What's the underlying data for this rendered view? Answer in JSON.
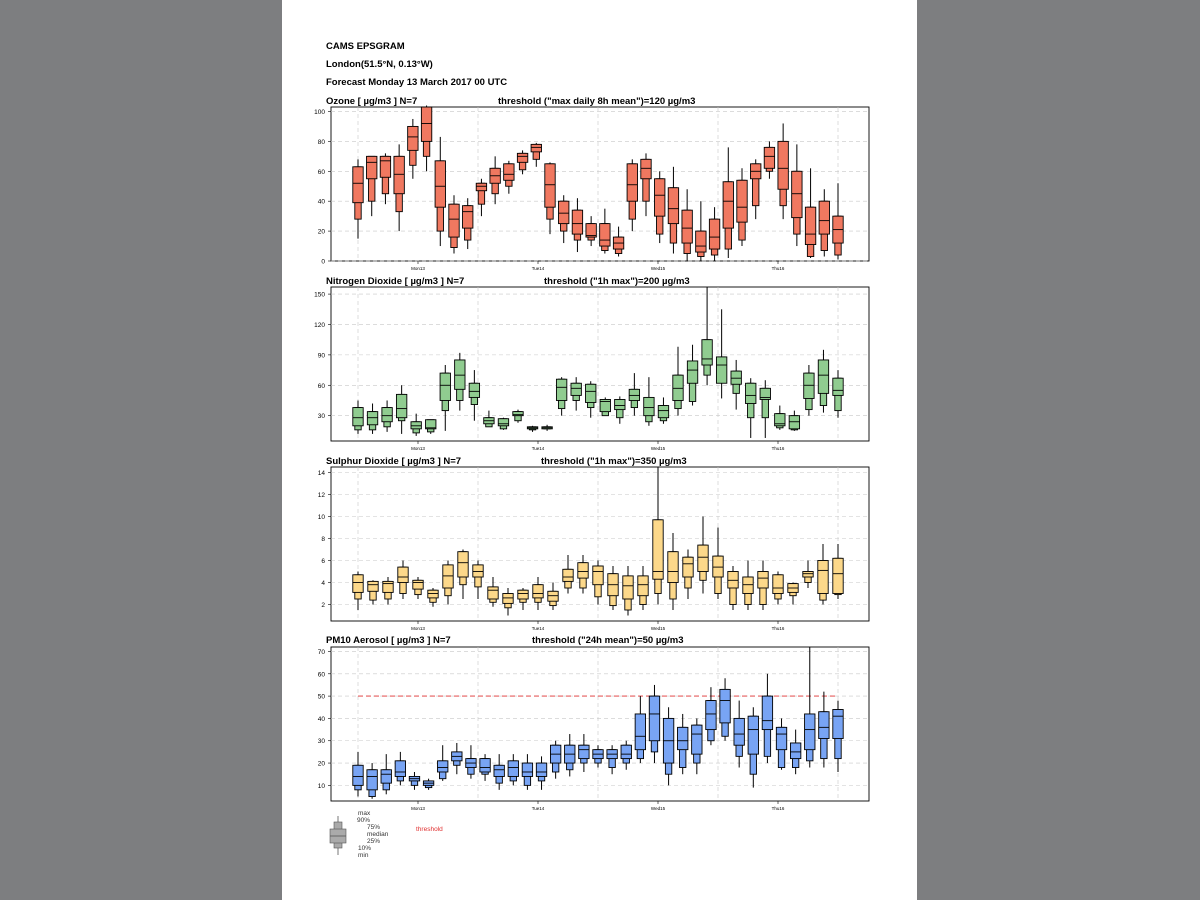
{
  "header": {
    "title": "CAMS EPSGRAM",
    "location": "London(51.5°N, 0.13°W)",
    "forecast": "Forecast Monday 13 March 2017 00 UTC"
  },
  "legend": {
    "max": "max",
    "p90": "90%",
    "p75": "75%",
    "median": "median",
    "p25": "25%",
    "p10": "10%",
    "min": "min",
    "threshold": "threshold"
  },
  "colors": {
    "ozone": "#f07860",
    "no2": "#90cc90",
    "so2": "#fcd88a",
    "pm10": "#78a4f4",
    "threshold_line": "#e03030",
    "page_bg": "#7d7e80"
  },
  "chart_data": [
    {
      "type": "boxplot",
      "title": "Ozone [ µg/m3 ]   N=7",
      "threshold_text": "threshold (\"max daily 8h mean\")=120 µg/m3",
      "ylim": [
        0,
        103
      ],
      "yticks": [
        0,
        20,
        40,
        60,
        80,
        100
      ],
      "x_tick_labels": [
        "Mon13",
        "Tue14",
        "Wed15",
        "Thu16"
      ],
      "threshold": null,
      "series": [
        [
          15,
          28,
          39,
          52,
          63,
          68
        ],
        [
          30,
          40,
          55,
          66,
          70,
          70
        ],
        [
          38,
          45,
          56,
          67,
          70,
          72
        ],
        [
          20,
          33,
          45,
          58,
          70,
          78
        ],
        [
          55,
          64,
          74,
          83,
          90,
          95
        ],
        [
          60,
          70,
          80,
          92,
          103,
          104
        ],
        [
          10,
          20,
          36,
          50,
          67,
          83
        ],
        [
          5,
          9,
          16,
          28,
          38,
          44
        ],
        [
          8,
          14,
          22,
          33,
          37,
          42
        ],
        [
          30,
          38,
          47,
          50,
          52,
          55
        ],
        [
          38,
          45,
          52,
          57,
          62,
          70
        ],
        [
          45,
          50,
          54,
          58,
          65,
          67
        ],
        [
          58,
          61,
          66,
          70,
          72,
          74
        ],
        [
          63,
          68,
          73,
          76,
          78,
          79
        ],
        [
          18,
          28,
          36,
          51,
          65,
          66
        ],
        [
          12,
          20,
          25,
          32,
          40,
          44
        ],
        [
          6,
          14,
          18,
          25,
          34,
          42
        ],
        [
          10,
          14,
          16,
          17,
          25,
          30
        ],
        [
          5,
          7,
          10,
          14,
          25,
          35
        ],
        [
          3,
          5,
          8,
          12,
          16,
          23
        ],
        [
          20,
          28,
          40,
          51,
          65,
          68
        ],
        [
          30,
          40,
          55,
          62,
          68,
          72
        ],
        [
          12,
          18,
          30,
          44,
          55,
          60
        ],
        [
          5,
          12,
          25,
          35,
          49,
          63
        ],
        [
          0,
          5,
          12,
          22,
          34,
          48
        ],
        [
          0,
          3,
          6,
          10,
          20,
          40
        ],
        [
          0,
          4,
          8,
          16,
          28,
          36
        ],
        [
          2,
          8,
          22,
          40,
          53,
          76
        ],
        [
          10,
          14,
          26,
          36,
          54,
          62
        ],
        [
          28,
          37,
          55,
          60,
          65,
          68
        ],
        [
          55,
          60,
          62,
          70,
          76,
          80
        ],
        [
          28,
          37,
          48,
          62,
          80,
          92
        ],
        [
          10,
          18,
          29,
          45,
          60,
          78
        ],
        [
          2,
          3,
          11,
          18,
          36,
          62
        ],
        [
          3,
          7,
          18,
          27,
          40,
          48
        ],
        [
          1,
          4,
          12,
          21,
          30,
          52
        ]
      ]
    },
    {
      "type": "boxplot",
      "title": "Nitrogen Dioxide [ µg/m3 ]   N=7",
      "threshold_text": "threshold (\"1h max\")=200 µg/m3",
      "ylim": [
        5,
        157
      ],
      "yticks": [
        30,
        60,
        90,
        120,
        150
      ],
      "x_tick_labels": [
        "Mon13",
        "Tue14",
        "Wed15",
        "Thu16"
      ],
      "threshold": null,
      "series": [
        [
          12,
          16,
          20,
          28,
          38,
          45
        ],
        [
          12,
          16,
          21,
          28,
          34,
          42
        ],
        [
          14,
          19,
          24,
          30,
          38,
          45
        ],
        [
          12,
          25,
          28,
          37,
          51,
          60
        ],
        [
          10,
          13,
          17,
          20,
          24,
          32
        ],
        [
          12,
          14,
          17,
          18,
          26,
          25
        ],
        [
          15,
          35,
          45,
          60,
          72,
          80
        ],
        [
          35,
          45,
          56,
          70,
          85,
          92
        ],
        [
          25,
          41,
          48,
          54,
          62,
          75
        ],
        [
          20,
          19,
          22,
          25,
          28,
          35
        ],
        [
          16,
          17,
          20,
          22,
          27,
          28
        ],
        [
          23,
          25,
          30,
          31,
          34,
          36
        ],
        [
          14,
          16,
          17,
          18,
          19,
          20
        ],
        [
          15,
          17,
          17,
          18,
          19,
          21
        ],
        [
          30,
          37,
          45,
          58,
          66,
          68
        ],
        [
          35,
          45,
          50,
          57,
          62,
          68
        ],
        [
          28,
          38,
          43,
          54,
          61,
          64
        ],
        [
          30,
          30,
          34,
          44,
          46,
          48
        ],
        [
          22,
          28,
          36,
          40,
          46,
          49
        ],
        [
          30,
          38,
          45,
          50,
          56,
          72
        ],
        [
          20,
          24,
          30,
          38,
          48,
          68
        ],
        [
          22,
          25,
          28,
          35,
          40,
          48
        ],
        [
          30,
          37,
          45,
          57,
          70,
          98
        ],
        [
          40,
          44,
          62,
          75,
          84,
          100
        ],
        [
          60,
          70,
          80,
          86,
          105,
          157
        ],
        [
          47,
          63,
          62,
          80,
          88,
          135
        ],
        [
          36,
          52,
          61,
          67,
          74,
          85
        ],
        [
          8,
          28,
          42,
          50,
          62,
          67
        ],
        [
          8,
          28,
          46,
          48,
          57,
          65
        ],
        [
          16,
          18,
          20,
          22,
          32,
          40
        ],
        [
          15,
          16,
          17,
          24,
          30,
          35
        ],
        [
          30,
          36,
          47,
          60,
          72,
          80
        ],
        [
          33,
          40,
          52,
          70,
          85,
          95
        ],
        [
          28,
          35,
          50,
          55,
          67,
          75
        ]
      ]
    },
    {
      "type": "boxplot",
      "title": "Sulphur Dioxide [ µg/m3 ]   N=7",
      "threshold_text": "threshold (\"1h max\")=350 µg/m3",
      "ylim": [
        0.5,
        14.5
      ],
      "yticks": [
        2,
        4,
        6,
        8,
        10,
        12,
        14
      ],
      "x_tick_labels": [
        "Mon13",
        "Tue14",
        "Wed15",
        "Thu16"
      ],
      "threshold": null,
      "series": [
        [
          1.5,
          2.5,
          3.1,
          4.0,
          4.7,
          5.0
        ],
        [
          2.0,
          2.4,
          3.2,
          3.8,
          4.1,
          4.2
        ],
        [
          2.0,
          2.5,
          3.1,
          3.9,
          4.1,
          4.5
        ],
        [
          2.5,
          3.0,
          4.0,
          4.5,
          5.4,
          6.0
        ],
        [
          2.5,
          2.9,
          3.4,
          4.0,
          4.2,
          4.5
        ],
        [
          1.8,
          2.2,
          2.6,
          3.0,
          3.3,
          3.5
        ],
        [
          2.0,
          2.8,
          3.5,
          4.6,
          5.6,
          6.0
        ],
        [
          2.5,
          3.8,
          4.5,
          5.8,
          6.8,
          7.0
        ],
        [
          2.5,
          3.6,
          4.5,
          5.0,
          5.6,
          6.0
        ],
        [
          1.8,
          2.2,
          2.5,
          3.3,
          3.6,
          4.5
        ],
        [
          1.0,
          1.7,
          2.1,
          2.6,
          3.0,
          3.5
        ],
        [
          1.5,
          2.2,
          2.5,
          3.0,
          3.3,
          3.5
        ],
        [
          1.5,
          2.2,
          2.6,
          3.0,
          3.8,
          4.5
        ],
        [
          1.5,
          1.9,
          2.3,
          2.8,
          3.2,
          4.0
        ],
        [
          3.0,
          3.5,
          4.1,
          4.5,
          5.2,
          6.5
        ],
        [
          3.0,
          3.5,
          4.4,
          5.0,
          5.8,
          6.5
        ],
        [
          2.0,
          2.7,
          3.8,
          5.0,
          5.5,
          6.0
        ],
        [
          1.5,
          1.9,
          2.8,
          3.8,
          4.8,
          5.5
        ],
        [
          1.0,
          1.5,
          2.5,
          3.7,
          4.6,
          5.5
        ],
        [
          1.5,
          2.0,
          2.8,
          3.8,
          4.6,
          5.5
        ],
        [
          2.0,
          3.0,
          4.3,
          5.0,
          9.7,
          14.5
        ],
        [
          1.5,
          2.5,
          4.0,
          5.0,
          6.8,
          8.5
        ],
        [
          2.5,
          3.5,
          4.5,
          5.7,
          6.3,
          7.0
        ],
        [
          3.0,
          4.2,
          5.0,
          6.3,
          7.4,
          10.0
        ],
        [
          2.5,
          3.0,
          4.5,
          5.4,
          6.4,
          9.0
        ],
        [
          1.5,
          2.0,
          3.5,
          4.2,
          5.0,
          5.5
        ],
        [
          1.5,
          2.0,
          3.0,
          3.8,
          4.5,
          6.0
        ],
        [
          1.5,
          2.0,
          3.5,
          4.4,
          5.0,
          6.0
        ],
        [
          2.0,
          2.5,
          3.0,
          3.5,
          4.7,
          5.0
        ],
        [
          2.0,
          2.8,
          3.1,
          3.5,
          3.9,
          4.0
        ],
        [
          3.5,
          4.0,
          4.5,
          4.8,
          5.0,
          6.0
        ],
        [
          2.0,
          2.4,
          3.0,
          5.1,
          6.0,
          7.5
        ],
        [
          2.5,
          2.9,
          3.0,
          4.8,
          6.2,
          7.5
        ]
      ]
    },
    {
      "type": "boxplot",
      "title": "PM10 Aerosol [ µg/m3 ]   N=7",
      "threshold_text": "threshold (\"24h mean\")=50 µg/m3",
      "ylim": [
        3,
        72
      ],
      "yticks": [
        10,
        20,
        30,
        40,
        50,
        60,
        70
      ],
      "x_tick_labels": [
        "Mon13",
        "Tue14",
        "Wed15",
        "Thu16"
      ],
      "threshold": 50,
      "series": [
        [
          5,
          8,
          10,
          14,
          19,
          25
        ],
        [
          4,
          5,
          8,
          14,
          17,
          20
        ],
        [
          6,
          8,
          11,
          15,
          17,
          24
        ],
        [
          10,
          12,
          14,
          16,
          21,
          25
        ],
        [
          8,
          10,
          12,
          13,
          14,
          16
        ],
        [
          8,
          9,
          10,
          11,
          12,
          13
        ],
        [
          12,
          13,
          16,
          18,
          21,
          28
        ],
        [
          15,
          19,
          21,
          23,
          25,
          29
        ],
        [
          13,
          15,
          18,
          20,
          22,
          28
        ],
        [
          12,
          15,
          16,
          18,
          22,
          24
        ],
        [
          8,
          11,
          14,
          17,
          19,
          24
        ],
        [
          10,
          12,
          14,
          18,
          21,
          24
        ],
        [
          8,
          10,
          14,
          16,
          20,
          24
        ],
        [
          8,
          12,
          14,
          16,
          20,
          23
        ],
        [
          13,
          16,
          20,
          24,
          28,
          30
        ],
        [
          14,
          17,
          20,
          24,
          28,
          33
        ],
        [
          16,
          20,
          22,
          26,
          28,
          33
        ],
        [
          18,
          20,
          22,
          24,
          26,
          28
        ],
        [
          15,
          18,
          22,
          24,
          26,
          28
        ],
        [
          17,
          20,
          22,
          24,
          28,
          30
        ],
        [
          20,
          22,
          26,
          32,
          42,
          50
        ],
        [
          20,
          25,
          30,
          42,
          50,
          55
        ],
        [
          10,
          15,
          20,
          30,
          40,
          45
        ],
        [
          15,
          18,
          26,
          30,
          36,
          42
        ],
        [
          15,
          20,
          24,
          33,
          37,
          40
        ],
        [
          28,
          30,
          35,
          42,
          48,
          54
        ],
        [
          30,
          32,
          38,
          48,
          53,
          58
        ],
        [
          18,
          23,
          28,
          33,
          40,
          48
        ],
        [
          9,
          15,
          24,
          35,
          41,
          45
        ],
        [
          20,
          23,
          35,
          39,
          50,
          60
        ],
        [
          17,
          18,
          26,
          33,
          36,
          40
        ],
        [
          15,
          18,
          22,
          25,
          29,
          35
        ],
        [
          18,
          21,
          26,
          35,
          42,
          72
        ],
        [
          18,
          22,
          31,
          36,
          43,
          52
        ],
        [
          16,
          22,
          31,
          41,
          44,
          48
        ]
      ]
    }
  ]
}
